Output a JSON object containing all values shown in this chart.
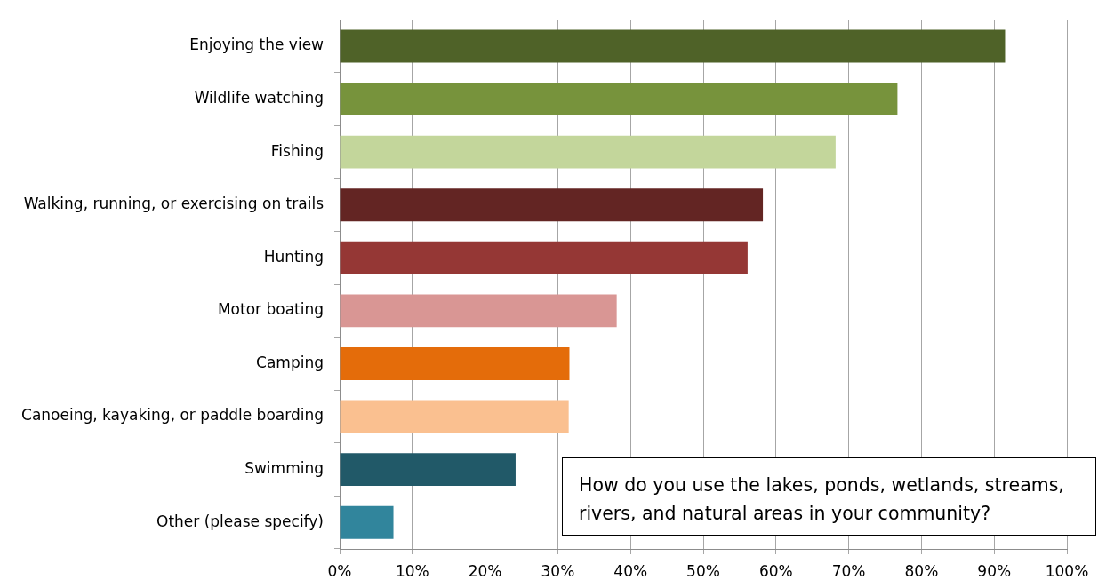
{
  "chart_data": {
    "type": "bar",
    "orientation": "horizontal",
    "title": "How do you use the lakes, ponds, wetlands, streams, rivers, and natural areas in your community?",
    "categories": [
      "Enjoying the view",
      "Wildlife watching",
      "Fishing",
      "Walking, running, or exercising on trails",
      "Hunting",
      "Motor boating",
      "Camping",
      "Canoeing, kayaking, or paddle boarding",
      "Swimming",
      "Other (please specify)"
    ],
    "values": [
      91.5,
      76.7,
      68.2,
      58.2,
      56.1,
      38.1,
      31.6,
      31.5,
      24.2,
      7.4
    ],
    "colors": [
      "#4f6228",
      "#77933c",
      "#c3d69b",
      "#632523",
      "#953735",
      "#d99694",
      "#e46c0a",
      "#fac090",
      "#215968",
      "#31859c"
    ],
    "xlim": [
      0,
      100
    ],
    "xticks": [
      {
        "value": 0,
        "label": "0%"
      },
      {
        "value": 10,
        "label": "10%"
      },
      {
        "value": 20,
        "label": "20%"
      },
      {
        "value": 30,
        "label": "30%"
      },
      {
        "value": 40,
        "label": "40%"
      },
      {
        "value": 50,
        "label": "50%"
      },
      {
        "value": 60,
        "label": "60%"
      },
      {
        "value": 70,
        "label": "70%"
      },
      {
        "value": 80,
        "label": "80%"
      },
      {
        "value": 90,
        "label": "90%"
      },
      {
        "value": 100,
        "label": "100%"
      }
    ],
    "grid": "x"
  }
}
